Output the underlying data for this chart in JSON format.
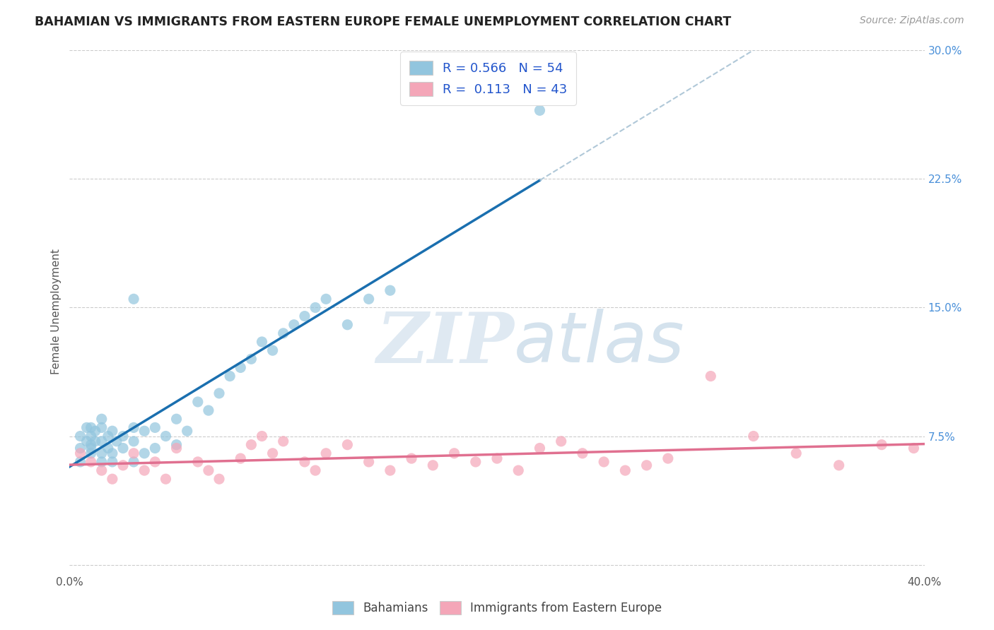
{
  "title": "BAHAMIAN VS IMMIGRANTS FROM EASTERN EUROPE FEMALE UNEMPLOYMENT CORRELATION CHART",
  "source_text": "Source: ZipAtlas.com",
  "ylabel": "Female Unemployment",
  "watermark_zip": "ZIP",
  "watermark_atlas": "atlas",
  "xlim": [
    0.0,
    0.4
  ],
  "ylim": [
    -0.005,
    0.3
  ],
  "yticks": [
    0.0,
    0.075,
    0.15,
    0.225,
    0.3
  ],
  "ytick_labels": [
    "",
    "7.5%",
    "15.0%",
    "22.5%",
    "30.0%"
  ],
  "blue_color": "#92c5de",
  "pink_color": "#f4a6b8",
  "blue_line_color": "#1a6faf",
  "pink_line_color": "#e07090",
  "dashed_line_color": "#b0c8d8",
  "title_color": "#222222",
  "source_color": "#999999",
  "background_color": "#ffffff",
  "grid_color": "#cccccc",
  "blue_scatter_x": [
    0.005,
    0.005,
    0.005,
    0.008,
    0.008,
    0.01,
    0.01,
    0.01,
    0.01,
    0.01,
    0.012,
    0.012,
    0.015,
    0.015,
    0.015,
    0.015,
    0.015,
    0.018,
    0.018,
    0.02,
    0.02,
    0.02,
    0.022,
    0.025,
    0.025,
    0.03,
    0.03,
    0.03,
    0.035,
    0.035,
    0.04,
    0.04,
    0.045,
    0.05,
    0.05,
    0.055,
    0.06,
    0.065,
    0.07,
    0.075,
    0.08,
    0.085,
    0.09,
    0.095,
    0.1,
    0.105,
    0.11,
    0.115,
    0.12,
    0.13,
    0.14,
    0.15,
    0.22,
    0.03
  ],
  "blue_scatter_y": [
    0.068,
    0.075,
    0.06,
    0.072,
    0.08,
    0.065,
    0.07,
    0.075,
    0.08,
    0.068,
    0.072,
    0.078,
    0.06,
    0.065,
    0.072,
    0.08,
    0.085,
    0.068,
    0.075,
    0.06,
    0.065,
    0.078,
    0.072,
    0.068,
    0.075,
    0.06,
    0.072,
    0.08,
    0.065,
    0.078,
    0.068,
    0.08,
    0.075,
    0.07,
    0.085,
    0.078,
    0.095,
    0.09,
    0.1,
    0.11,
    0.115,
    0.12,
    0.13,
    0.125,
    0.135,
    0.14,
    0.145,
    0.15,
    0.155,
    0.14,
    0.155,
    0.16,
    0.265,
    0.155
  ],
  "pink_scatter_x": [
    0.005,
    0.01,
    0.015,
    0.02,
    0.025,
    0.03,
    0.035,
    0.04,
    0.045,
    0.05,
    0.06,
    0.065,
    0.07,
    0.08,
    0.085,
    0.09,
    0.095,
    0.1,
    0.11,
    0.115,
    0.12,
    0.13,
    0.14,
    0.15,
    0.16,
    0.17,
    0.18,
    0.19,
    0.2,
    0.21,
    0.22,
    0.23,
    0.24,
    0.25,
    0.26,
    0.27,
    0.28,
    0.3,
    0.32,
    0.34,
    0.36,
    0.38,
    0.395
  ],
  "pink_scatter_y": [
    0.065,
    0.06,
    0.055,
    0.05,
    0.058,
    0.065,
    0.055,
    0.06,
    0.05,
    0.068,
    0.06,
    0.055,
    0.05,
    0.062,
    0.07,
    0.075,
    0.065,
    0.072,
    0.06,
    0.055,
    0.065,
    0.07,
    0.06,
    0.055,
    0.062,
    0.058,
    0.065,
    0.06,
    0.062,
    0.055,
    0.068,
    0.072,
    0.065,
    0.06,
    0.055,
    0.058,
    0.062,
    0.11,
    0.075,
    0.065,
    0.058,
    0.07,
    0.068
  ]
}
